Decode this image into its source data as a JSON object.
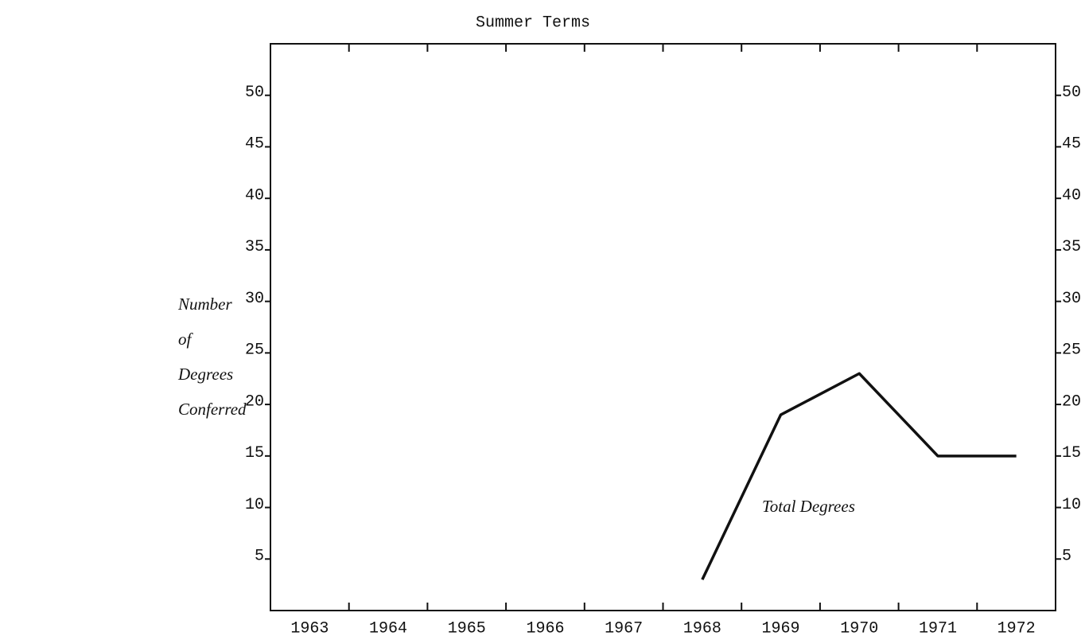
{
  "chart_data": {
    "type": "line",
    "title": "Summer Terms",
    "y_label": [
      "Number",
      "of",
      "Degrees",
      "Conferred"
    ],
    "annotation": "Total Degrees",
    "categories": [
      "1963",
      "1964",
      "1965",
      "1966",
      "1967",
      "1968",
      "1969",
      "1970",
      "1971",
      "1972"
    ],
    "series": [
      {
        "name": "Total Degrees",
        "color": "#111111",
        "values": [
          null,
          null,
          null,
          null,
          null,
          3,
          19,
          23,
          15,
          15
        ]
      }
    ],
    "ylim": [
      0,
      55
    ],
    "yticks": [
      5,
      10,
      15,
      20,
      25,
      30,
      35,
      40,
      45,
      50
    ],
    "right_axis_ticks": true,
    "grid": false
  }
}
